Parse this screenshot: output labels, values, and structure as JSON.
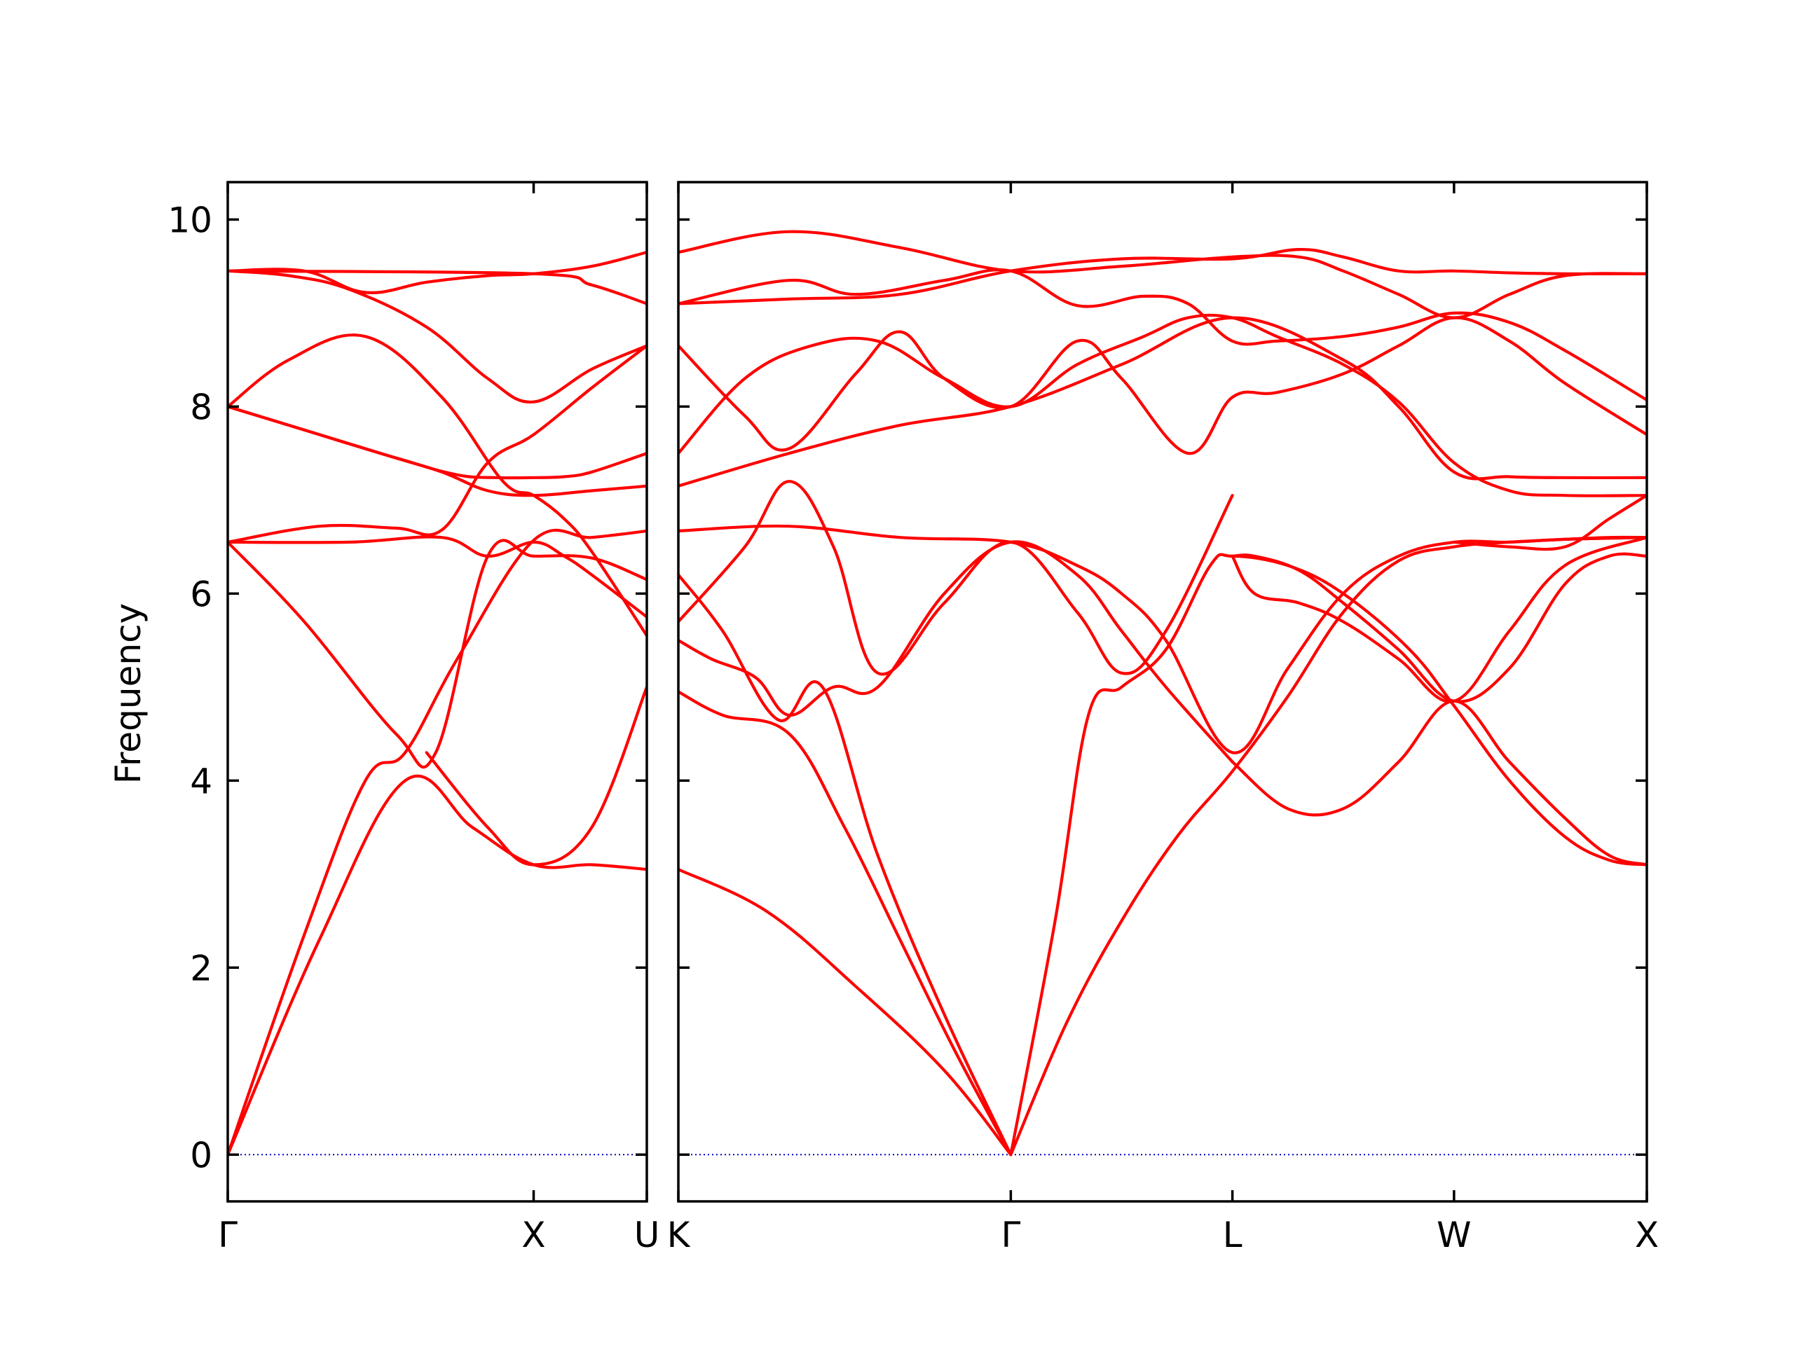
{
  "chart_data": {
    "type": "line",
    "title": "",
    "ylabel": "Frequency",
    "xlabel": "",
    "ylim": [
      -0.5,
      10.4
    ],
    "yticks": [
      0,
      2,
      4,
      6,
      8,
      10
    ],
    "colors": {
      "bands": "#ff0000",
      "zero_line": "#0000cc",
      "frame": "#000000"
    },
    "grid": false,
    "legend": "none",
    "segments": [
      {
        "name": "Γ-X-U",
        "xlim": [
          0,
          1.37
        ],
        "labels": [
          {
            "x": 0,
            "text": "Γ"
          },
          {
            "x": 1.0,
            "text": "X"
          },
          {
            "x": 1.37,
            "text": "U"
          }
        ],
        "series": [
          {
            "x": [
              0,
              0.3,
              0.58,
              0.8,
              1.0,
              1.19,
              1.37
            ],
            "y": [
              0,
              2.3,
              4.0,
              3.5,
              3.1,
              3.1,
              3.05
            ]
          },
          {
            "x": [
              0,
              0.25,
              0.45,
              0.58,
              0.75,
              1.0,
              1.19,
              1.37
            ],
            "y": [
              0,
              2.35,
              4.0,
              4.3,
              5.3,
              6.57,
              6.6,
              6.67
            ]
          },
          {
            "x": [
              0,
              0.25,
              0.55,
              0.68,
              0.85,
              1.0,
              1.19,
              1.37
            ],
            "y": [
              6.55,
              5.7,
              4.5,
              4.3,
              6.4,
              6.4,
              6.38,
              6.15
            ]
          },
          {
            "x": [
              0,
              0.3,
              0.55,
              0.7,
              0.85,
              1.0,
              1.19,
              1.37
            ],
            "y": [
              6.55,
              6.72,
              6.7,
              6.68,
              7.4,
              7.7,
              8.2,
              8.65
            ]
          },
          {
            "x": [
              0,
              0.25,
              0.55,
              0.75,
              0.88,
              1.0,
              1.1,
              1.19,
              1.37
            ],
            "y": [
              8.0,
              7.75,
              7.45,
              7.27,
              7.24,
              7.24,
              7.25,
              7.3,
              7.5
            ]
          },
          {
            "x": [
              0,
              0.2,
              0.45,
              0.7,
              0.9,
              1.0,
              1.1,
              1.19,
              1.37
            ],
            "y": [
              8.0,
              8.5,
              8.75,
              8.1,
              7.2,
              7.05,
              6.8,
              6.45,
              5.55
            ]
          },
          {
            "x": [
              0,
              0.2,
              0.4,
              0.65,
              0.85,
              1.0,
              1.19,
              1.37
            ],
            "y": [
              9.45,
              9.4,
              9.25,
              8.85,
              8.3,
              8.05,
              8.4,
              8.65
            ]
          },
          {
            "x": [
              0,
              0.25,
              0.45,
              0.65,
              0.85,
              1.0,
              1.19,
              1.37
            ],
            "y": [
              9.45,
              9.45,
              9.22,
              9.33,
              9.4,
              9.42,
              9.5,
              9.65
            ]
          },
          {
            "x": [
              0,
              1.0,
              1.19,
              1.37
            ],
            "y": [
              9.45,
              9.42,
              9.3,
              9.1
            ]
          },
          {
            "x": [
              0,
              0.4,
              0.7,
              0.85,
              1.0,
              1.1,
              1.19,
              1.37
            ],
            "y": [
              6.55,
              6.55,
              6.6,
              6.4,
              6.55,
              6.4,
              6.2,
              5.75
            ]
          },
          {
            "x": [
              0,
              0.3,
              0.5,
              0.7,
              0.85,
              1.0,
              1.19,
              1.37
            ],
            "y": [
              8.0,
              7.7,
              7.5,
              7.3,
              7.1,
              7.05,
              7.1,
              7.15
            ]
          },
          {
            "x": [
              0.65,
              0.85,
              1.0,
              1.19,
              1.37
            ],
            "y": [
              4.3,
              3.5,
              3.1,
              3.5,
              5.0
            ]
          }
        ]
      },
      {
        "name": "K-Γ-L-W-X",
        "xlim": [
          0,
          4.37
        ],
        "labels": [
          {
            "x": 0,
            "text": "K"
          },
          {
            "x": 1.5,
            "text": "Γ"
          },
          {
            "x": 2.5,
            "text": "L"
          },
          {
            "x": 3.5,
            "text": "W"
          },
          {
            "x": 4.37,
            "text": "X"
          }
        ],
        "series": [
          {
            "x": [
              0,
              0.4,
              0.8,
              1.2,
              1.5
            ],
            "y": [
              3.05,
              2.6,
              1.8,
              0.9,
              0
            ]
          },
          {
            "x": [
              0,
              0.2,
              0.5,
              0.75,
              1.0,
              1.25,
              1.5
            ],
            "y": [
              4.95,
              4.7,
              4.5,
              3.5,
              2.3,
              1.1,
              0
            ]
          },
          {
            "x": [
              0,
              0.2,
              0.45,
              0.65,
              0.9,
              1.2,
              1.5
            ],
            "y": [
              6.2,
              5.6,
              4.65,
              5.0,
              3.2,
              1.5,
              0
            ]
          },
          {
            "x": [
              1.5,
              1.75,
              2.0,
              2.25,
              2.5,
              2.75,
              3.0,
              3.25,
              3.5,
              3.75,
              4.0,
              4.2,
              4.37
            ],
            "y": [
              0,
              1.4,
              2.5,
              3.4,
              4.1,
              4.9,
              5.8,
              6.35,
              6.5,
              6.55,
              6.58,
              6.6,
              6.6
            ]
          },
          {
            "x": [
              1.5,
              1.7,
              1.85,
              2.0,
              2.2,
              2.4,
              2.5,
              2.75,
              3.0,
              3.3,
              3.5,
              3.75,
              4.0,
              4.2,
              4.37
            ],
            "y": [
              0,
              2.5,
              4.7,
              5.0,
              5.4,
              6.3,
              6.4,
              6.3,
              6.0,
              5.4,
              4.8,
              4.0,
              3.4,
              3.15,
              3.1
            ]
          },
          {
            "x": [
              0,
              0.15,
              0.35,
              0.5,
              0.7,
              0.9,
              1.2,
              1.5,
              1.8,
              2.0,
              2.2,
              2.5
            ],
            "y": [
              5.5,
              5.3,
              5.1,
              4.7,
              5.0,
              5.0,
              6.0,
              6.55,
              6.2,
              5.6,
              5.0,
              4.2
            ]
          },
          {
            "x": [
              0,
              0.3,
              0.5,
              0.7,
              0.9,
              1.2,
              1.5,
              1.8,
              2.0,
              2.2,
              2.5
            ],
            "y": [
              5.7,
              6.5,
              7.2,
              6.5,
              5.15,
              5.9,
              6.55,
              5.8,
              5.15,
              5.6,
              7.05
            ]
          },
          {
            "x": [
              2.5,
              2.75,
              3.0,
              3.25,
              3.5,
              3.75,
              4.0,
              4.2,
              4.37
            ],
            "y": [
              4.2,
              3.7,
              3.7,
              4.2,
              4.85,
              4.2,
              3.6,
              3.2,
              3.1
            ]
          },
          {
            "x": [
              0,
              0.5,
              1.0,
              1.5,
              1.8,
              2.0,
              2.2,
              2.5,
              2.75,
              3.0,
              3.25,
              3.5,
              3.75,
              4.0,
              4.37
            ],
            "y": [
              6.67,
              6.72,
              6.6,
              6.55,
              6.3,
              6.0,
              5.5,
              4.3,
              5.2,
              6.0,
              6.4,
              6.55,
              6.55,
              6.58,
              6.6
            ]
          },
          {
            "x": [
              2.5,
              2.6,
              2.8,
              3.0,
              3.25,
              3.5,
              3.75,
              4.0,
              4.2,
              4.37
            ],
            "y": [
              6.4,
              6.4,
              6.25,
              5.9,
              5.4,
              4.85,
              5.2,
              6.1,
              6.4,
              6.4
            ]
          },
          {
            "x": [
              2.5,
              2.6,
              2.8,
              3.0,
              3.25,
              3.5,
              3.75,
              4.0,
              4.37
            ],
            "y": [
              6.4,
              6.0,
              5.9,
              5.7,
              5.3,
              4.85,
              5.6,
              6.3,
              6.6
            ]
          },
          {
            "x": [
              3.5,
              3.75,
              4.0,
              4.2,
              4.37
            ],
            "y": [
              6.55,
              6.5,
              6.5,
              6.8,
              7.05
            ]
          },
          {
            "x": [
              0,
              0.5,
              1.0,
              1.5,
              2.0,
              2.5,
              3.0,
              3.25,
              3.5,
              3.75,
              4.0,
              4.37
            ],
            "y": [
              7.15,
              7.5,
              7.8,
              8.0,
              8.45,
              8.95,
              8.5,
              8.0,
              7.3,
              7.25,
              7.24,
              7.24
            ]
          },
          {
            "x": [
              0,
              0.3,
              0.5,
              0.8,
              1.0,
              1.2,
              1.5,
              1.8,
              2.0,
              2.3,
              2.5,
              2.7,
              3.0,
              3.25,
              3.5,
              3.75,
              4.0,
              4.37
            ],
            "y": [
              8.65,
              7.9,
              7.55,
              8.35,
              8.8,
              8.3,
              8.0,
              8.7,
              8.3,
              7.5,
              8.1,
              8.15,
              8.35,
              8.65,
              8.95,
              8.7,
              8.25,
              7.7
            ]
          },
          {
            "x": [
              0,
              0.3,
              0.6,
              0.9,
              1.2,
              1.5,
              1.8,
              2.1,
              2.3,
              2.5,
              2.7,
              3.0,
              3.25,
              3.5,
              3.75,
              4.0,
              4.37
            ],
            "y": [
              7.5,
              8.3,
              8.65,
              8.7,
              8.3,
              8.0,
              8.45,
              8.75,
              8.95,
              8.95,
              8.75,
              8.45,
              8.05,
              7.4,
              7.1,
              7.05,
              7.05
            ]
          },
          {
            "x": [
              0,
              0.5,
              0.8,
              1.2,
              1.5,
              1.8,
              2.1,
              2.3,
              2.5,
              2.7,
              3.0,
              3.25,
              3.5,
              3.75,
              4.0,
              4.37
            ],
            "y": [
              9.1,
              9.35,
              9.2,
              9.35,
              9.45,
              9.08,
              9.18,
              9.1,
              8.7,
              8.7,
              8.75,
              8.85,
              9.0,
              8.9,
              8.6,
              8.07
            ]
          },
          {
            "x": [
              0,
              0.5,
              1.0,
              1.5,
              2.0,
              2.5,
              2.8,
              3.0,
              3.25,
              3.5,
              3.75,
              4.0,
              4.37
            ],
            "y": [
              9.1,
              9.15,
              9.2,
              9.45,
              9.58,
              9.58,
              9.68,
              9.6,
              9.45,
              9.45,
              9.43,
              9.42,
              9.42
            ]
          },
          {
            "x": [
              0,
              0.5,
              1.0,
              1.5,
              2.0,
              2.5,
              2.8,
              3.0,
              3.25,
              3.5,
              3.75,
              4.0,
              4.37
            ],
            "y": [
              9.65,
              9.87,
              9.7,
              9.45,
              9.5,
              9.6,
              9.6,
              9.45,
              9.2,
              8.95,
              9.2,
              9.4,
              9.42
            ]
          }
        ]
      }
    ]
  }
}
